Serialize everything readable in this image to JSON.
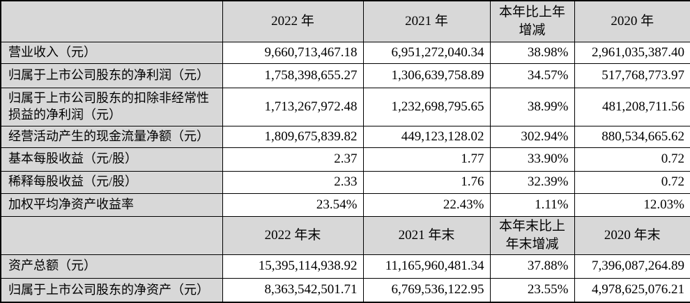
{
  "colors": {
    "header_and_label_bg": "#d8d8d8",
    "grid_border": "#000000",
    "text": "#000000",
    "data_cell_bg": "#ffffff"
  },
  "table": {
    "header1": {
      "blank": "",
      "col_2022": "2022 年",
      "col_2021": "2021 年",
      "col_change": "本年比上年\n增减",
      "col_2020": "2020 年"
    },
    "rows1": [
      {
        "label": "营业收入（元）",
        "y2022": "9,660,713,467.18",
        "y2021": "6,951,272,040.34",
        "change": "38.98%",
        "y2020": "2,961,035,387.40"
      },
      {
        "label": "归属于上市公司股东的净利润（元）",
        "y2022": "1,758,398,655.27",
        "y2021": "1,306,639,758.89",
        "change": "34.57%",
        "y2020": "517,768,773.97"
      },
      {
        "label": "归属于上市公司股东的扣除非经常性\n损益的净利润（元）",
        "y2022": "1,713,267,972.48",
        "y2021": "1,232,698,795.65",
        "change": "38.99%",
        "y2020": "481,208,711.56"
      },
      {
        "label": "经营活动产生的现金流量净额（元）",
        "y2022": "1,809,675,839.82",
        "y2021": "449,123,128.02",
        "change": "302.94%",
        "y2020": "880,534,665.62"
      },
      {
        "label": "基本每股收益（元/股）",
        "y2022": "2.37",
        "y2021": "1.77",
        "change": "33.90%",
        "y2020": "0.72"
      },
      {
        "label": "稀释每股收益（元/股）",
        "y2022": "2.33",
        "y2021": "1.76",
        "change": "32.39%",
        "y2020": "0.72"
      },
      {
        "label": "加权平均净资产收益率",
        "y2022": "23.54%",
        "y2021": "22.43%",
        "change": "1.11%",
        "y2020": "12.03%"
      }
    ],
    "header2": {
      "blank": "",
      "col_2022": "2022 年末",
      "col_2021": "2021 年末",
      "col_change": "本年末比上\n年末增减",
      "col_2020": "2020 年末"
    },
    "rows2": [
      {
        "label": "资产总额（元）",
        "y2022": "15,395,114,938.92",
        "y2021": "11,165,960,481.34",
        "change": "37.88%",
        "y2020": "7,396,087,264.89"
      },
      {
        "label": "归属于上市公司股东的净资产（元）",
        "y2022": "8,363,542,501.71",
        "y2021": "6,769,536,122.95",
        "change": "23.55%",
        "y2020": "4,978,625,076.21"
      }
    ]
  }
}
